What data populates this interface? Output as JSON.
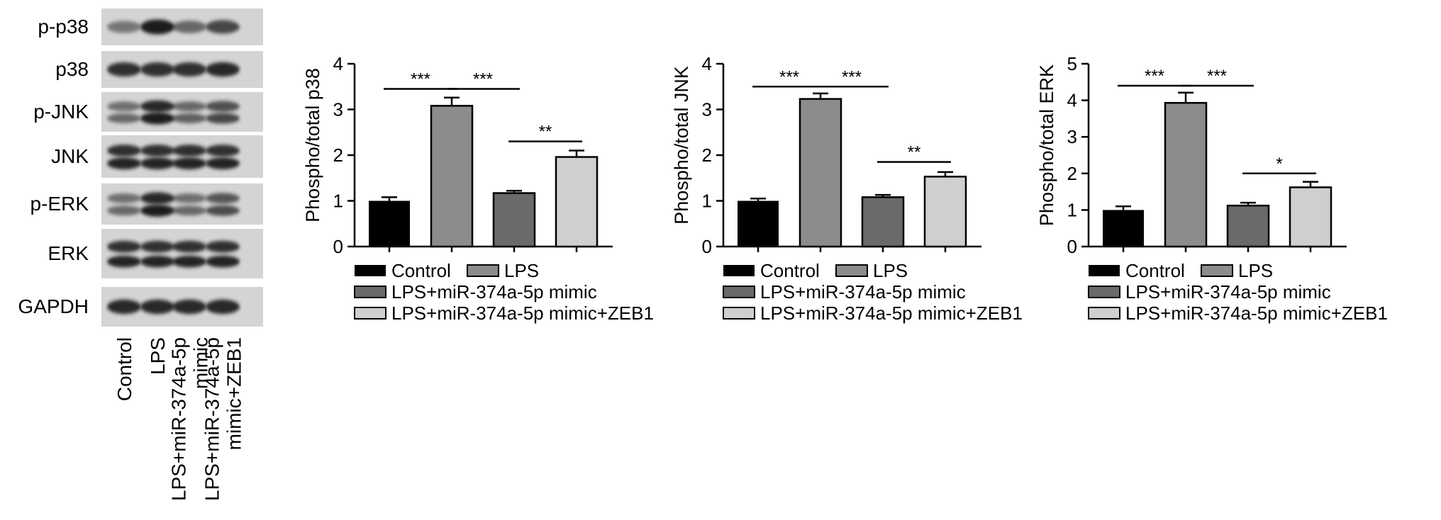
{
  "western_blot": {
    "rows": [
      {
        "label": "p-p38",
        "bands": 1,
        "intensity": [
          0.35,
          1.0,
          0.45,
          0.7
        ]
      },
      {
        "label": "p38",
        "bands": 1,
        "intensity": [
          0.85,
          0.85,
          0.85,
          0.9
        ]
      },
      {
        "label": "p-JNK",
        "bands": 2,
        "intensity": [
          0.45,
          1.0,
          0.5,
          0.7
        ]
      },
      {
        "label": "JNK",
        "bands": 2,
        "intensity": [
          0.95,
          0.95,
          0.95,
          0.95
        ]
      },
      {
        "label": "p-ERK",
        "bands": 2,
        "intensity": [
          0.45,
          1.0,
          0.45,
          0.65
        ]
      },
      {
        "label": "ERK",
        "bands": 2,
        "intensity": [
          0.95,
          0.95,
          0.95,
          0.95
        ]
      },
      {
        "label": "GAPDH",
        "bands": 1,
        "intensity": [
          0.9,
          0.9,
          0.9,
          0.9
        ]
      }
    ],
    "lanes": [
      [
        "Control"
      ],
      [
        "LPS"
      ],
      [
        "LPS+miR-374a-5p",
        "mimic"
      ],
      [
        "LPS+miR-374a-5p",
        "mimic+ZEB1"
      ]
    ]
  },
  "colors": {
    "control": "#000000",
    "lps": "#8c8c8c",
    "mimic": "#6a6a6a",
    "mimic_zeb1": "#cfcfcf"
  },
  "chart_data": [
    {
      "type": "bar",
      "ylabel": "Phospho/total p38",
      "ylim": [
        0,
        4
      ],
      "yticks": [
        0,
        1,
        2,
        3,
        4
      ],
      "categories": [
        "Control",
        "LPS",
        "LPS+miR-374a-5p mimic",
        "LPS+miR-374a-5p mimic+ZEB1"
      ],
      "values": [
        1.0,
        3.08,
        1.17,
        1.96
      ],
      "errors": [
        0.08,
        0.18,
        0.05,
        0.14
      ],
      "significance": [
        {
          "from": 0,
          "to": 1,
          "label": "***",
          "y": 3.45
        },
        {
          "from": 1,
          "to": 2,
          "label": "***",
          "y": 3.45
        },
        {
          "from": 2,
          "to": 3,
          "label": "**",
          "y": 2.3
        }
      ],
      "legend": [
        "Control",
        "LPS",
        "LPS+miR-374a-5p mimic",
        "LPS+miR-374a-5p mimic+ZEB1"
      ]
    },
    {
      "type": "bar",
      "ylabel": "Phospho/total JNK",
      "ylim": [
        0,
        4
      ],
      "yticks": [
        0,
        1,
        2,
        3,
        4
      ],
      "categories": [
        "Control",
        "LPS",
        "LPS+miR-374a-5p mimic",
        "LPS+miR-374a-5p mimic+ZEB1"
      ],
      "values": [
        1.0,
        3.23,
        1.08,
        1.53
      ],
      "errors": [
        0.05,
        0.12,
        0.05,
        0.1
      ],
      "significance": [
        {
          "from": 0,
          "to": 1,
          "label": "***",
          "y": 3.5
        },
        {
          "from": 1,
          "to": 2,
          "label": "***",
          "y": 3.5
        },
        {
          "from": 2,
          "to": 3,
          "label": "**",
          "y": 1.85
        }
      ],
      "legend": [
        "Control",
        "LPS",
        "LPS+miR-374a-5p mimic",
        "LPS+miR-374a-5p mimic+ZEB1"
      ]
    },
    {
      "type": "bar",
      "ylabel": "Phospho/total ERK",
      "ylim": [
        0,
        5
      ],
      "yticks": [
        0,
        1,
        2,
        3,
        4,
        5
      ],
      "categories": [
        "Control",
        "LPS",
        "LPS+miR-374a-5p mimic",
        "LPS+miR-374a-5p mimic+ZEB1"
      ],
      "values": [
        1.0,
        3.93,
        1.12,
        1.62
      ],
      "errors": [
        0.1,
        0.28,
        0.08,
        0.15
      ],
      "significance": [
        {
          "from": 0,
          "to": 1,
          "label": "***",
          "y": 4.4
        },
        {
          "from": 1,
          "to": 2,
          "label": "***",
          "y": 4.4
        },
        {
          "from": 2,
          "to": 3,
          "label": "*",
          "y": 2.0
        }
      ],
      "legend": [
        "Control",
        "LPS",
        "LPS+miR-374a-5p mimic",
        "LPS+miR-374a-5p mimic+ZEB1"
      ]
    }
  ]
}
